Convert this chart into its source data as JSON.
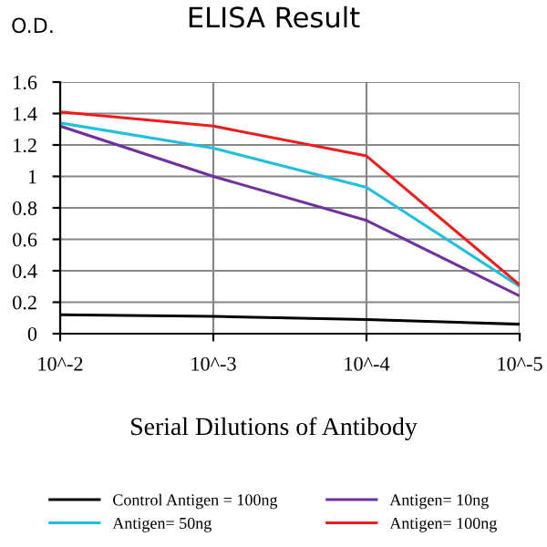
{
  "chart_data": {
    "type": "line",
    "title": "ELISA Result",
    "ylabel": "O.D.",
    "xlabel": "Serial Dilutions of Antibody",
    "categories": [
      "10^-2",
      "10^-3",
      "10^-4",
      "10^-5"
    ],
    "series": [
      {
        "name": "Control Antigen = 100ng",
        "color": "#000000",
        "values": [
          0.12,
          0.11,
          0.09,
          0.06
        ]
      },
      {
        "name": "Antigen= 10ng",
        "color": "#7030a0",
        "values": [
          1.32,
          1.0,
          0.72,
          0.24
        ]
      },
      {
        "name": "Antigen= 50ng",
        "color": "#1fbfdf",
        "values": [
          1.34,
          1.18,
          0.93,
          0.3
        ]
      },
      {
        "name": "Antigen= 100ng",
        "color": "#ee1c1c",
        "values": [
          1.41,
          1.32,
          1.13,
          0.31
        ]
      }
    ],
    "ylim": [
      0,
      1.6
    ],
    "yticks": [
      0,
      0.2,
      0.4,
      0.6,
      0.8,
      1,
      1.2,
      1.4,
      1.6
    ],
    "grid": true,
    "legend": "bottom",
    "marker": "none",
    "line_style": "solid"
  }
}
